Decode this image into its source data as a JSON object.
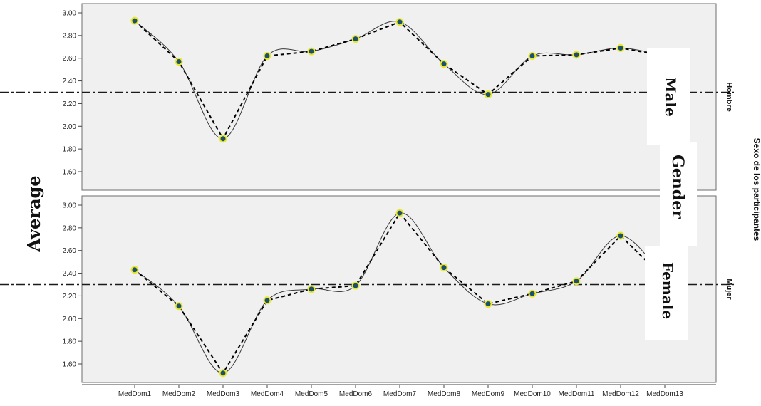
{
  "chart_data": {
    "type": "line",
    "categories": [
      "MedDom1",
      "MedDom2",
      "MedDom3",
      "MedDom4",
      "MedDom5",
      "MedDom6",
      "MedDom7",
      "MedDom8",
      "MedDom9",
      "MedDom10",
      "MedDom11",
      "MedDom12",
      "MedDom13"
    ],
    "panels": [
      {
        "facet_label": "Hombre",
        "overlay_label": "Male",
        "ylim": [
          1.45,
          3.05
        ],
        "yticks": [
          "3.00",
          "2.80",
          "2.60",
          "2.40",
          "2.20",
          "2.00",
          "1.80",
          "1.60"
        ],
        "ytick_values": [
          3.0,
          2.8,
          2.6,
          2.4,
          2.2,
          2.0,
          1.8,
          1.6
        ],
        "reference_value": 2.3,
        "values": [
          2.93,
          2.57,
          1.89,
          2.62,
          2.66,
          2.77,
          2.92,
          2.55,
          2.28,
          2.62,
          2.63,
          2.69,
          2.62
        ]
      },
      {
        "facet_label": "Mujer",
        "overlay_label": "Female",
        "ylim": [
          1.45,
          3.05
        ],
        "yticks": [
          "3.00",
          "2.80",
          "2.60",
          "2.40",
          "2.20",
          "2.00",
          "1.80",
          "1.60"
        ],
        "ytick_values": [
          3.0,
          2.8,
          2.6,
          2.4,
          2.2,
          2.0,
          1.8,
          1.6
        ],
        "reference_value": 2.3,
        "values": [
          2.43,
          2.11,
          1.52,
          2.16,
          2.26,
          2.29,
          2.93,
          2.45,
          2.13,
          2.22,
          2.33,
          2.73,
          2.35
        ]
      }
    ],
    "ylabel": "Average",
    "facet_title": "Sexo de los participantes",
    "overlay_gender_label": "Gender",
    "grid": false
  }
}
